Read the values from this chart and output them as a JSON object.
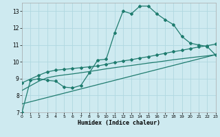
{
  "xlabel": "Humidex (Indice chaleur)",
  "bg_color": "#ceeaf0",
  "grid_color": "#b0d8e0",
  "line_color": "#1e7b6e",
  "xlim": [
    0,
    23
  ],
  "ylim": [
    7,
    13.5
  ],
  "xticks": [
    0,
    1,
    2,
    3,
    4,
    5,
    6,
    7,
    8,
    9,
    10,
    11,
    12,
    13,
    14,
    15,
    16,
    17,
    18,
    19,
    20,
    21,
    22,
    23
  ],
  "yticks": [
    7,
    8,
    9,
    10,
    11,
    12,
    13
  ],
  "curve1_x": [
    0,
    1,
    2,
    3,
    4,
    5,
    6,
    7,
    8,
    9,
    10,
    11,
    12,
    13,
    14,
    15,
    16,
    17,
    18,
    19,
    20,
    21,
    22,
    23
  ],
  "curve1_y": [
    7.0,
    8.9,
    9.0,
    8.9,
    8.85,
    8.5,
    8.45,
    8.6,
    9.35,
    10.1,
    10.15,
    11.7,
    13.0,
    12.85,
    13.3,
    13.3,
    12.85,
    12.5,
    12.2,
    11.5,
    11.1,
    11.0,
    10.9,
    10.4
  ],
  "curve2_x": [
    0,
    2,
    3,
    4,
    5,
    6,
    7,
    8,
    9,
    10,
    11,
    12,
    13,
    14,
    15,
    16,
    17,
    18,
    19,
    20,
    21,
    22,
    23
  ],
  "curve2_y": [
    8.75,
    9.2,
    9.4,
    9.5,
    9.55,
    9.6,
    9.65,
    9.7,
    9.75,
    9.85,
    9.95,
    10.05,
    10.12,
    10.22,
    10.3,
    10.4,
    10.5,
    10.6,
    10.68,
    10.78,
    10.88,
    10.95,
    11.05
  ],
  "curve3_x": [
    0,
    2,
    3,
    4,
    5,
    6,
    7,
    8,
    9,
    10,
    11,
    12,
    13,
    14,
    15,
    16,
    17,
    18,
    19,
    20,
    21,
    22,
    23
  ],
  "curve3_y": [
    8.3,
    8.85,
    9.05,
    9.15,
    9.22,
    9.28,
    9.35,
    9.42,
    9.5,
    9.58,
    9.65,
    9.72,
    9.78,
    9.85,
    9.92,
    9.98,
    10.05,
    10.12,
    10.18,
    10.24,
    10.3,
    10.35,
    10.42
  ],
  "curve4_x": [
    0,
    23
  ],
  "curve4_y": [
    7.5,
    10.42
  ]
}
